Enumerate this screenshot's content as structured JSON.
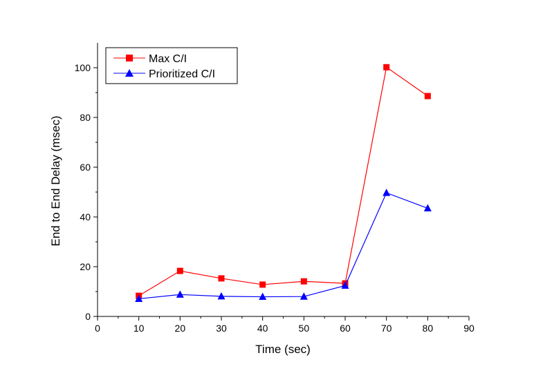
{
  "chart_data": {
    "type": "line",
    "title": "",
    "xlabel": "Time (sec)",
    "ylabel": "End to End Delay (msec)",
    "xlim": [
      0,
      90
    ],
    "ylim": [
      0,
      110
    ],
    "xticks": [
      0,
      10,
      20,
      30,
      40,
      50,
      60,
      70,
      80,
      90
    ],
    "yticks": [
      0,
      20,
      40,
      60,
      80,
      100
    ],
    "grid": false,
    "legend_position": "top-left",
    "x": [
      10,
      20,
      30,
      40,
      50,
      60,
      70,
      80
    ],
    "series": [
      {
        "name": "Max C/I",
        "color": "#ff0000",
        "marker": "square",
        "values": [
          8.3,
          18.3,
          15.3,
          12.8,
          14.1,
          13.3,
          100.2,
          88.6
        ]
      },
      {
        "name": "Prioritized C/I",
        "color": "#0000ff",
        "marker": "triangle",
        "values": [
          7.1,
          8.8,
          8.1,
          7.9,
          8.0,
          12.4,
          49.7,
          43.5
        ]
      }
    ]
  }
}
